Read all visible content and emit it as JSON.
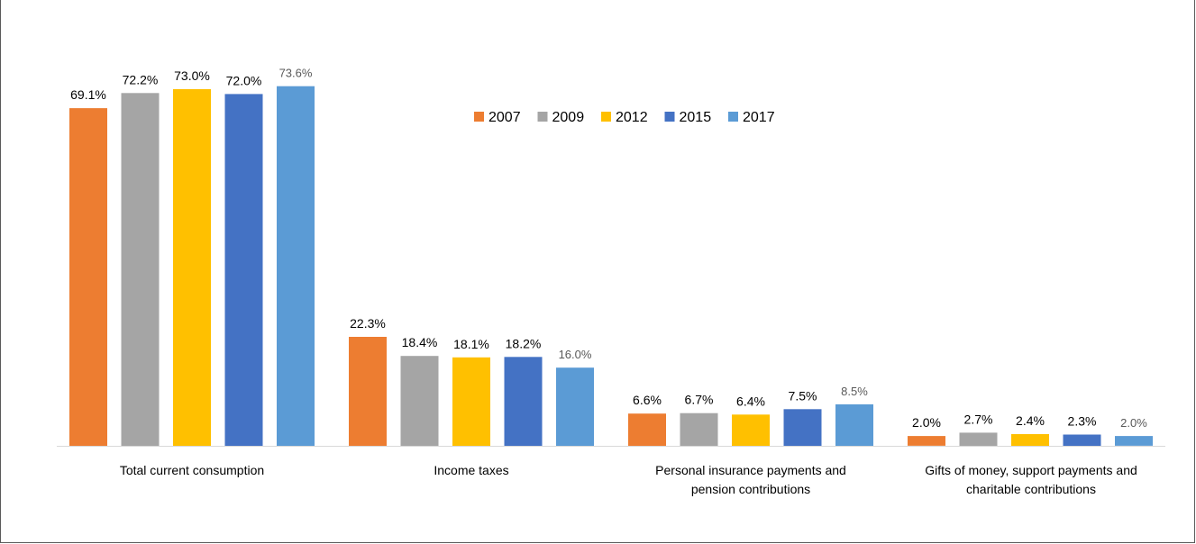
{
  "chart_data": {
    "type": "bar",
    "title": "",
    "xlabel": "",
    "ylabel": "",
    "ylim": [
      0,
      80
    ],
    "grid": false,
    "legend_position": "top-center",
    "categories": [
      [
        "Total current consumption"
      ],
      [
        "Income taxes"
      ],
      [
        "Personal insurance payments and",
        "pension contributions"
      ],
      [
        "Gifts of money, support payments and",
        "charitable contributions"
      ]
    ],
    "series": [
      {
        "name": "2007",
        "color": "#ED7D31",
        "values": [
          69.1,
          22.3,
          6.6,
          2.0
        ],
        "labels": [
          "69.1%",
          "22.3%",
          "6.6%",
          "2.0%"
        ]
      },
      {
        "name": "2009",
        "color": "#A5A5A5",
        "values": [
          72.2,
          18.4,
          6.7,
          2.7
        ],
        "labels": [
          "72.2%",
          "18.4%",
          "6.7%",
          "2.7%"
        ]
      },
      {
        "name": "2012",
        "color": "#FFC000",
        "values": [
          73.0,
          18.1,
          6.4,
          2.4
        ],
        "labels": [
          "73.0%",
          "18.1%",
          "6.4%",
          "2.4%"
        ]
      },
      {
        "name": "2015",
        "color": "#4472C4",
        "values": [
          72.0,
          18.2,
          7.5,
          2.3
        ],
        "labels": [
          "72.0%",
          "18.2%",
          "7.5%",
          "2.3%"
        ]
      },
      {
        "name": "2017",
        "color": "#5B9BD5",
        "values": [
          73.6,
          16.0,
          8.5,
          2.0
        ],
        "labels": [
          "73.6%",
          "16.0%",
          "8.5%",
          "2.0%"
        ],
        "muted_labels": true
      }
    ]
  }
}
